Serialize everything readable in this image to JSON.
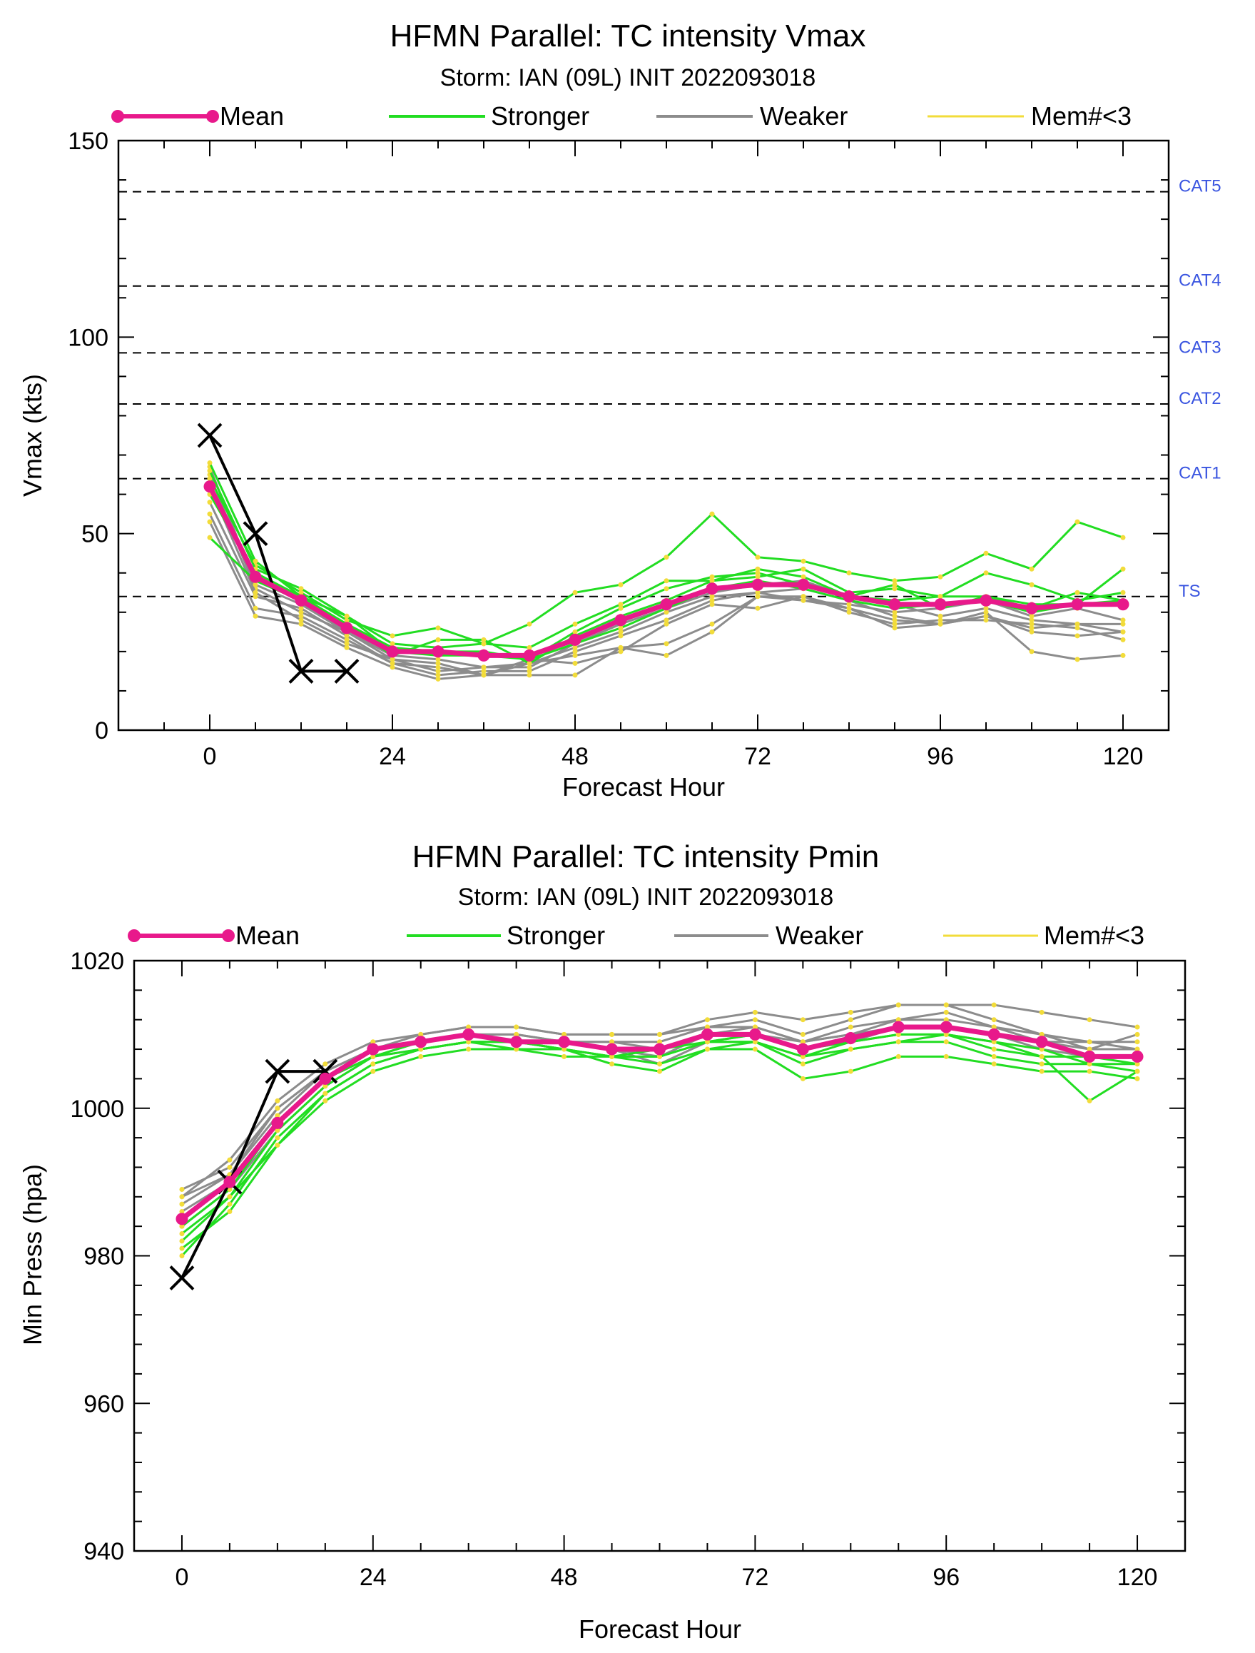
{
  "colors": {
    "mean": "#e8198b",
    "stronger": "#22dd22",
    "weaker": "#8c8c8c",
    "member_dot": "#f2dc3a",
    "category_label": "#3a55e0",
    "best_track": "#000000",
    "reference_line": "#000000"
  },
  "chart_data": [
    {
      "type": "line",
      "title": "HFMN Parallel: TC intensity Vmax",
      "subtitle": "Storm: IAN (09L) INIT 2022093018",
      "xlabel": "Forecast Hour",
      "ylabel": "Vmax (kts)",
      "xlim": [
        -12,
        126
      ],
      "ylim": [
        0,
        150
      ],
      "xticks": [
        0,
        24,
        48,
        72,
        96,
        120
      ],
      "xtick_labels": [
        "0",
        "24",
        "48",
        "72",
        "96",
        "120"
      ],
      "yticks": [
        0,
        50,
        100,
        150
      ],
      "ytick_labels": [
        "0",
        "50",
        "100",
        "150"
      ],
      "legend_position": "top",
      "legend": [
        "Mean",
        "Stronger",
        "Weaker",
        "Mem#<3"
      ],
      "reference_lines": [
        {
          "label": "CAT5",
          "value": 137
        },
        {
          "label": "CAT4",
          "value": 113
        },
        {
          "label": "CAT3",
          "value": 96
        },
        {
          "label": "CAT2",
          "value": 83
        },
        {
          "label": "CAT1",
          "value": 64
        },
        {
          "label": "TS",
          "value": 34
        }
      ],
      "x": [
        0,
        6,
        12,
        18,
        24,
        30,
        36,
        42,
        48,
        54,
        60,
        66,
        72,
        78,
        84,
        90,
        96,
        102,
        108,
        114,
        120
      ],
      "mean": [
        62,
        39,
        33,
        26,
        20,
        20,
        19,
        19,
        23,
        28,
        32,
        36,
        37,
        37,
        34,
        32,
        32,
        33,
        31,
        32,
        32
      ],
      "stronger": [
        [
          64,
          42,
          35,
          28,
          24,
          26,
          22,
          27,
          35,
          37,
          44,
          55,
          44,
          43,
          40,
          38,
          39,
          45,
          41,
          53,
          49
        ],
        [
          66,
          41,
          36,
          29,
          22,
          21,
          22,
          21,
          27,
          32,
          38,
          38,
          39,
          41,
          35,
          36,
          34,
          40,
          37,
          33,
          35
        ],
        [
          60,
          40,
          34,
          27,
          21,
          20,
          20,
          18,
          25,
          31,
          36,
          39,
          40,
          37,
          34,
          37,
          31,
          34,
          31,
          35,
          33
        ],
        [
          49,
          38,
          33,
          27,
          19,
          23,
          23,
          17,
          24,
          29,
          33,
          38,
          41,
          39,
          34,
          33,
          34,
          34,
          32,
          32,
          41
        ],
        [
          68,
          43,
          34,
          29,
          20,
          19,
          19,
          18,
          22,
          26,
          31,
          36,
          38,
          36,
          33,
          31,
          32,
          33,
          30,
          32,
          33
        ]
      ],
      "weaker": [
        [
          65,
          36,
          30,
          25,
          18,
          15,
          16,
          16,
          22,
          27,
          31,
          35,
          37,
          38,
          34,
          32,
          29,
          31,
          28,
          27,
          27
        ],
        [
          58,
          34,
          31,
          24,
          17,
          14,
          15,
          15,
          20,
          24,
          28,
          33,
          35,
          36,
          33,
          29,
          27,
          29,
          26,
          27,
          25
        ],
        [
          62,
          35,
          28,
          22,
          18,
          17,
          14,
          17,
          19,
          21,
          19,
          25,
          34,
          34,
          31,
          28,
          27,
          29,
          25,
          24,
          25
        ],
        [
          55,
          31,
          29,
          23,
          17,
          16,
          14,
          18,
          17,
          20,
          27,
          32,
          31,
          34,
          30,
          27,
          28,
          28,
          27,
          26,
          23
        ],
        [
          53,
          29,
          27,
          21,
          16,
          13,
          14,
          14,
          14,
          21,
          22,
          27,
          34,
          33,
          31,
          26,
          27,
          30,
          20,
          18,
          19
        ],
        [
          67,
          37,
          32,
          25,
          19,
          18,
          16,
          17,
          21,
          25,
          30,
          34,
          35,
          33,
          32,
          30,
          31,
          33,
          29,
          31,
          28
        ]
      ],
      "best_track": {
        "x": [
          0,
          6,
          12,
          18
        ],
        "values": [
          75,
          50,
          15,
          15
        ]
      }
    },
    {
      "type": "line",
      "title": "HFMN Parallel: TC intensity Pmin",
      "subtitle": "Storm: IAN (09L) INIT 2022093018",
      "xlabel": "Forecast Hour",
      "ylabel": "Min Press (hpa)",
      "xlim": [
        -6,
        126
      ],
      "ylim": [
        940,
        1020
      ],
      "xticks": [
        0,
        24,
        48,
        72,
        96,
        120
      ],
      "xtick_labels": [
        "0",
        "24",
        "48",
        "72",
        "96",
        "120"
      ],
      "yticks": [
        940,
        960,
        980,
        1000,
        1020
      ],
      "ytick_labels": [
        "940",
        "960",
        "980",
        "1000",
        "1020"
      ],
      "legend_position": "top",
      "legend": [
        "Mean",
        "Stronger",
        "Weaker",
        "Mem#<3"
      ],
      "x": [
        0,
        6,
        12,
        18,
        24,
        30,
        36,
        42,
        48,
        54,
        60,
        66,
        72,
        78,
        84,
        90,
        96,
        102,
        108,
        114,
        120
      ],
      "mean": [
        985,
        990,
        998,
        1004,
        1008,
        1009,
        1010,
        1009,
        1009,
        1008,
        1008,
        1010,
        1010,
        1008,
        1009.5,
        1011,
        1011,
        1010,
        1009,
        1007,
        1007
      ],
      "stronger": [
        [
          982,
          988,
          997,
          1003,
          1007,
          1009,
          1010,
          1009,
          1008,
          1007,
          1008,
          1009,
          1009,
          1007,
          1009,
          1010,
          1010,
          1008,
          1007,
          1001,
          1005
        ],
        [
          984,
          989,
          998,
          1004,
          1007,
          1008,
          1009,
          1009,
          1008,
          1006,
          1005,
          1008,
          1008,
          1004,
          1005,
          1007,
          1007,
          1006,
          1005,
          1005,
          1004
        ],
        [
          980,
          987,
          996,
          1002,
          1006,
          1008,
          1009,
          1008,
          1008,
          1007,
          1007,
          1009,
          1009,
          1007,
          1008,
          1009,
          1009,
          1007,
          1006,
          1006,
          1006
        ],
        [
          983,
          988,
          995,
          1001,
          1005,
          1007,
          1008,
          1008,
          1007,
          1007,
          1006,
          1008,
          1009,
          1006,
          1008,
          1009,
          1010,
          1009,
          1008,
          1006,
          1005
        ],
        [
          981,
          986,
          995,
          1002,
          1006,
          1008,
          1009,
          1009,
          1008,
          1007,
          1007,
          1009,
          1010,
          1008,
          1009,
          1010,
          1010,
          1009,
          1007,
          1007,
          1006
        ]
      ],
      "weaker": [
        [
          988,
          993,
          1001,
          1006,
          1009,
          1010,
          1011,
          1011,
          1010,
          1010,
          1010,
          1012,
          1013,
          1012,
          1013,
          1014,
          1014,
          1014,
          1013,
          1012,
          1011
        ],
        [
          989,
          992,
          1000,
          1005,
          1008,
          1010,
          1011,
          1011,
          1010,
          1010,
          1010,
          1011,
          1012,
          1010,
          1012,
          1014,
          1014,
          1012,
          1010,
          1009,
          1009
        ],
        [
          987,
          991,
          999,
          1005,
          1008,
          1009,
          1010,
          1010,
          1009,
          1009,
          1009,
          1011,
          1011,
          1009,
          1010,
          1012,
          1013,
          1011,
          1010,
          1008,
          1010
        ],
        [
          986,
          990,
          998,
          1004,
          1007,
          1009,
          1010,
          1009,
          1009,
          1008,
          1007,
          1010,
          1010,
          1009,
          1010,
          1011,
          1011,
          1010,
          1009,
          1008,
          1008
        ],
        [
          984,
          989,
          997,
          1003,
          1007,
          1008,
          1009,
          1009,
          1009,
          1008,
          1006,
          1009,
          1010,
          1008,
          1009,
          1011,
          1011,
          1010,
          1008,
          1007,
          1007
        ],
        [
          988,
          991,
          1000,
          1005,
          1008,
          1009,
          1010,
          1010,
          1009,
          1009,
          1008,
          1010,
          1011,
          1009,
          1011,
          1012,
          1012,
          1011,
          1009,
          1009,
          1008
        ]
      ],
      "best_track": {
        "x": [
          0,
          6,
          12,
          18
        ],
        "values": [
          977,
          990,
          1005,
          1005
        ]
      }
    }
  ]
}
